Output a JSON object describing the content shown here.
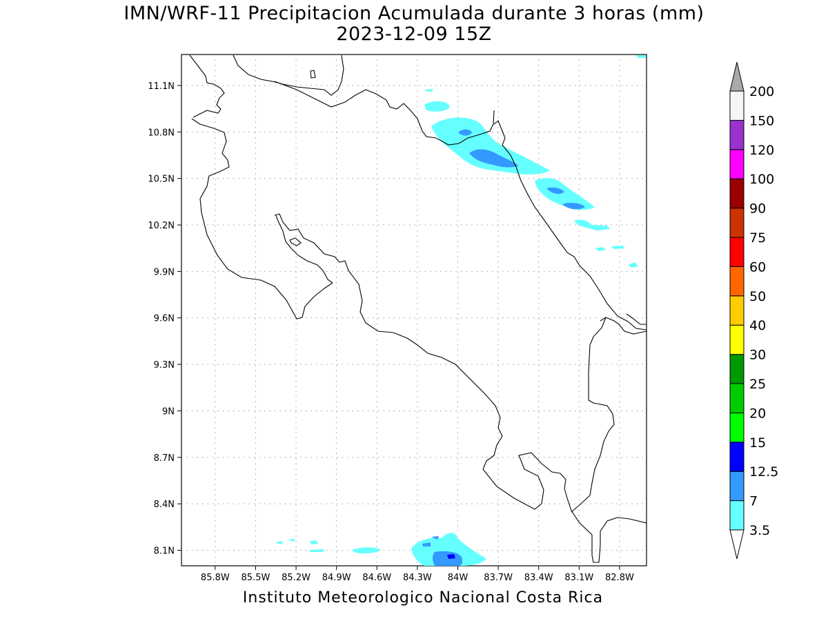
{
  "title_line1": "IMN/WRF-11 Precipitacion Acumulada durante 3 horas (mm)",
  "title_line2": "2023-12-09 15Z",
  "credit": "Instituto Meteorologico Nacional Costa Rica",
  "map": {
    "lon_range": [
      -86.05,
      -82.6
    ],
    "lat_range": [
      8.0,
      11.3
    ],
    "lon_ticks": [
      {
        "value": -85.8,
        "label": "85.8W"
      },
      {
        "value": -85.5,
        "label": "85.5W"
      },
      {
        "value": -85.2,
        "label": "85.2W"
      },
      {
        "value": -84.9,
        "label": "84.9W"
      },
      {
        "value": -84.6,
        "label": "84.6W"
      },
      {
        "value": -84.3,
        "label": "84.3W"
      },
      {
        "value": -84.0,
        "label": "84W"
      },
      {
        "value": -83.7,
        "label": "83.7W"
      },
      {
        "value": -83.4,
        "label": "83.4W"
      },
      {
        "value": -83.1,
        "label": "83.1W"
      },
      {
        "value": -82.8,
        "label": "82.8W"
      }
    ],
    "lat_ticks": [
      {
        "value": 11.1,
        "label": "11.1N"
      },
      {
        "value": 10.8,
        "label": "10.8N"
      },
      {
        "value": 10.5,
        "label": "10.5N"
      },
      {
        "value": 10.2,
        "label": "10.2N"
      },
      {
        "value": 9.9,
        "label": "9.9N"
      },
      {
        "value": 9.6,
        "label": "9.6N"
      },
      {
        "value": 9.3,
        "label": "9.3N"
      },
      {
        "value": 9.0,
        "label": "9N"
      },
      {
        "value": 8.7,
        "label": "8.7N"
      },
      {
        "value": 8.4,
        "label": "8.4N"
      },
      {
        "value": 8.1,
        "label": "8.1N"
      }
    ],
    "grid": true
  },
  "colorbar": {
    "levels": [
      "3.5",
      "7",
      "12.5",
      "15",
      "20",
      "25",
      "30",
      "40",
      "50",
      "60",
      "75",
      "90",
      "100",
      "120",
      "150",
      "200"
    ],
    "colors": [
      "#66ffff",
      "#3399ff",
      "#0000ff",
      "#00ff00",
      "#00cc00",
      "#009900",
      "#ffff00",
      "#ffcc00",
      "#ff6600",
      "#ff0000",
      "#cc3300",
      "#990000",
      "#ff00ff",
      "#9933cc",
      "#f5f5f5"
    ],
    "over_color": "#aaaaaa",
    "under_color": "#ffffff"
  }
}
